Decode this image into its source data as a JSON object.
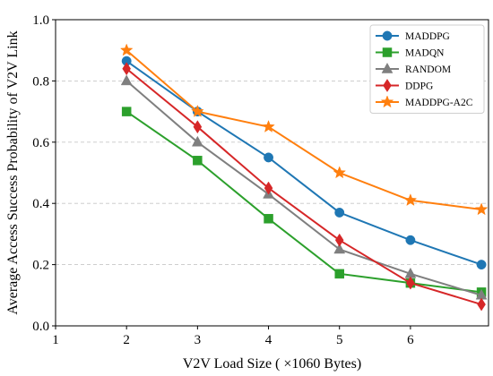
{
  "chart_data": {
    "type": "line",
    "title": "",
    "xlabel": "V2V Load Size ( ×1060 Bytes)",
    "ylabel": "Average Access Success Probability of V2V Link",
    "xlim": [
      1,
      7.1
    ],
    "ylim": [
      0,
      1.0
    ],
    "xticks": [
      1,
      2,
      3,
      4,
      5,
      6
    ],
    "yticks": [
      0.0,
      0.2,
      0.4,
      0.6,
      0.8,
      1.0
    ],
    "ytick_labels": [
      "0.0",
      "0.2",
      "0.4",
      "0.6",
      "0.8",
      "1.0"
    ],
    "grid": "horizontal dashed",
    "legend_position": "top-right",
    "x": [
      2,
      3,
      4,
      5,
      6,
      7
    ],
    "series": [
      {
        "name": "MADDPG",
        "color": "#1f77b4",
        "marker": "circle",
        "values": [
          0.865,
          0.7,
          0.55,
          0.37,
          0.28,
          0.2
        ]
      },
      {
        "name": "MADQN",
        "color": "#2ca02c",
        "marker": "square",
        "values": [
          0.7,
          0.54,
          0.35,
          0.17,
          0.14,
          0.11
        ]
      },
      {
        "name": "RANDOM",
        "color": "#7f7f7f",
        "marker": "triangle",
        "values": [
          0.8,
          0.6,
          0.43,
          0.25,
          0.17,
          0.1
        ]
      },
      {
        "name": "DDPG",
        "color": "#d62728",
        "marker": "diamond",
        "values": [
          0.84,
          0.65,
          0.45,
          0.28,
          0.14,
          0.07
        ]
      },
      {
        "name": "MADDPG-A2C",
        "color": "#ff7f0e",
        "marker": "star",
        "values": [
          0.9,
          0.7,
          0.65,
          0.5,
          0.41,
          0.38
        ]
      }
    ]
  }
}
